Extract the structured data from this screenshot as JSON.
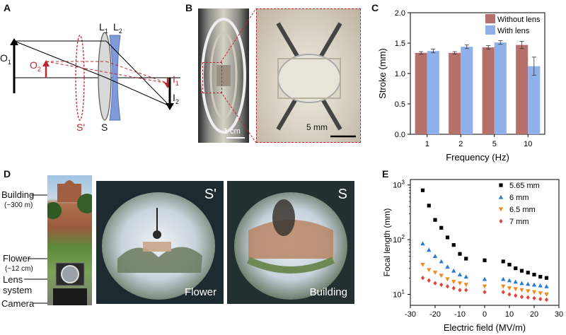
{
  "panels": {
    "a": "A",
    "b": "B",
    "c": "C",
    "d": "D",
    "e": "E"
  },
  "panel_a": {
    "O1": "O",
    "O1_sub": "1",
    "O2": "O",
    "O2_sub": "2",
    "I1": "I",
    "I1_sub": "1",
    "I2": "I",
    "I2_sub": "2",
    "L1": "L",
    "L1_sub": "1",
    "L2": "L",
    "L2_sub": "2",
    "S_prime": "S'",
    "S": "S"
  },
  "panel_b": {
    "scale_left": "1 cm",
    "scale_right": "5 mm"
  },
  "panel_d": {
    "building": "Building",
    "building_dist": "(~300 m)",
    "flower": "Flower",
    "flower_dist": "(~12 cm)",
    "lens": "Lens",
    "lens2": "system",
    "camera": "Camera",
    "img1_tag": "S'",
    "img1_caption": "Flower",
    "img2_tag": "S",
    "img2_caption": "Building"
  },
  "chart_data": [
    {
      "type": "bar",
      "ylabel": "Stroke (mm)",
      "xlabel": "Frequency (Hz)",
      "categories": [
        "1",
        "2",
        "5",
        "10"
      ],
      "ylim": [
        0,
        2.0
      ],
      "yticks": [
        "0.0",
        "0.5",
        "1.0",
        "1.5",
        "2.0"
      ],
      "legend_position": "top-right",
      "series": [
        {
          "name": "Without lens",
          "color": "#b5706b",
          "values": [
            1.34,
            1.34,
            1.43,
            1.47
          ],
          "errors": [
            0.02,
            0.02,
            0.03,
            0.06
          ]
        },
        {
          "name": "With lens",
          "color": "#8fb0ea",
          "values": [
            1.37,
            1.44,
            1.51,
            1.12
          ],
          "errors": [
            0.03,
            0.03,
            0.03,
            0.15
          ]
        }
      ]
    },
    {
      "type": "scatter",
      "ylabel": "Focal length (mm)",
      "xlabel": "Electric field (MV/m)",
      "xlim": [
        -30,
        30
      ],
      "ylim_log10": [
        0.8,
        3.1
      ],
      "xticks": [
        "-30",
        "-20",
        "-10",
        "0",
        "10",
        "20",
        "30"
      ],
      "yticks": [
        {
          "base": "10",
          "exp": "1"
        },
        {
          "base": "10",
          "exp": "2"
        },
        {
          "base": "10",
          "exp": "3"
        }
      ],
      "legend_position": "top-right",
      "x": [
        -25,
        -22.5,
        -20,
        -17.5,
        -15,
        -12.5,
        -10,
        -7.5,
        0,
        7.5,
        10,
        12.5,
        15,
        17.5,
        20,
        22.5,
        25
      ],
      "series": [
        {
          "name": "5.65 mm",
          "marker": "square",
          "color": "#000000",
          "values": [
            800,
            420,
            230,
            165,
            110,
            80,
            55,
            45,
            42,
            40,
            35,
            30,
            27,
            25,
            23,
            21,
            20
          ]
        },
        {
          "name": "6 mm",
          "marker": "triangle-up",
          "color": "#2b7bd2",
          "values": [
            85,
            65,
            50,
            40,
            32,
            27,
            23,
            21,
            19,
            19,
            18,
            17,
            16,
            15.5,
            15,
            14.5,
            14
          ]
        },
        {
          "name": "6.5 mm",
          "marker": "triangle-down",
          "color": "#f08a1c",
          "values": [
            35,
            28,
            25,
            22,
            19,
            17,
            16,
            15,
            14,
            14,
            13,
            12.5,
            12,
            11.5,
            11,
            10.5,
            10
          ]
        },
        {
          "name": "7 mm",
          "marker": "diamond",
          "color": "#e0443a",
          "values": [
            20,
            18,
            16,
            15,
            14,
            13,
            12,
            12,
            11,
            11,
            10,
            9.5,
            9,
            8.8,
            8.5,
            8.2,
            8
          ]
        }
      ]
    }
  ]
}
